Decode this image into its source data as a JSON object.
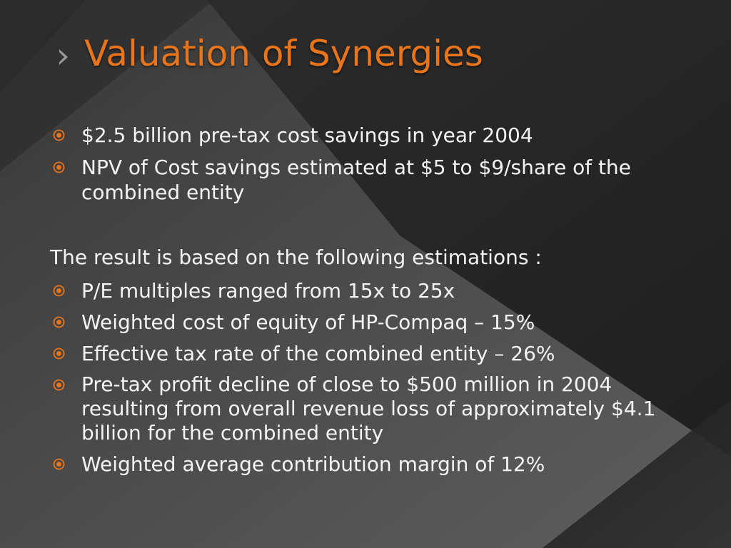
{
  "slide": {
    "title": "Valuation of Synergies",
    "intro_bullets": [
      "$2.5 billion pre-tax cost savings in year 2004",
      "NPV of Cost savings estimated at $5 to $9/share of the combined entity"
    ],
    "lead_text": "The result is based on the following estimations :",
    "estimation_bullets": [
      "P/E multiples ranged from 15x to 25x",
      "Weighted cost of equity of HP-Compaq – 15%",
      "Effective tax rate of the combined entity – 26%",
      "Pre-tax profit decline of close to $500 million in 2004 resulting from overall revenue loss of approximately $4.1 billion for the combined entity",
      "Weighted average contribution margin of 12%"
    ]
  },
  "theme": {
    "accent": "#e8741c",
    "text": "#f4f4f4",
    "background_dark": "#262626",
    "background_light": "#5a5a5a"
  },
  "icons": {
    "title_marker": "chevron-right-icon",
    "bullet_marker": "circled-dot-icon"
  }
}
